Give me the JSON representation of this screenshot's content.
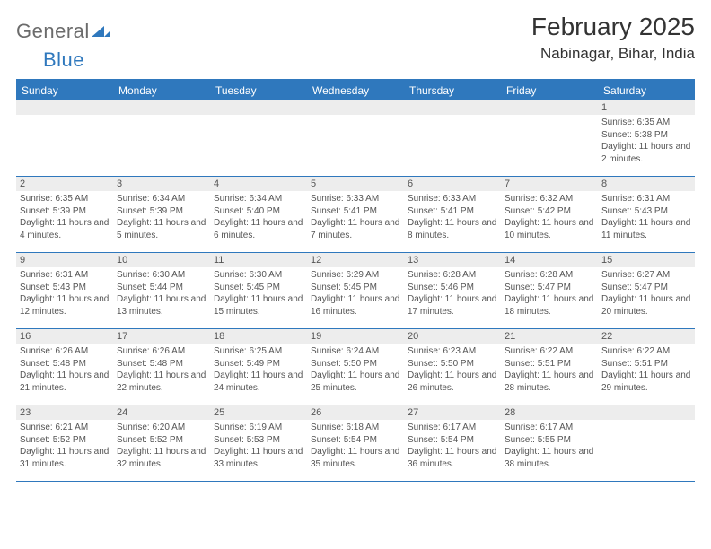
{
  "logo": {
    "part1": "General",
    "part2": "Blue"
  },
  "title": "February 2025",
  "location": "Nabinagar, Bihar, India",
  "colors": {
    "accent": "#2f78bd",
    "header_text": "#ffffff",
    "daynum_bg": "#ededed",
    "text": "#555555",
    "title_text": "#333333",
    "logo_gray": "#6b6b6b"
  },
  "dayNames": [
    "Sunday",
    "Monday",
    "Tuesday",
    "Wednesday",
    "Thursday",
    "Friday",
    "Saturday"
  ],
  "weeks": [
    [
      null,
      null,
      null,
      null,
      null,
      null,
      {
        "n": "1",
        "sunrise": "6:35 AM",
        "sunset": "5:38 PM",
        "daylight": "11 hours and 2 minutes."
      }
    ],
    [
      {
        "n": "2",
        "sunrise": "6:35 AM",
        "sunset": "5:39 PM",
        "daylight": "11 hours and 4 minutes."
      },
      {
        "n": "3",
        "sunrise": "6:34 AM",
        "sunset": "5:39 PM",
        "daylight": "11 hours and 5 minutes."
      },
      {
        "n": "4",
        "sunrise": "6:34 AM",
        "sunset": "5:40 PM",
        "daylight": "11 hours and 6 minutes."
      },
      {
        "n": "5",
        "sunrise": "6:33 AM",
        "sunset": "5:41 PM",
        "daylight": "11 hours and 7 minutes."
      },
      {
        "n": "6",
        "sunrise": "6:33 AM",
        "sunset": "5:41 PM",
        "daylight": "11 hours and 8 minutes."
      },
      {
        "n": "7",
        "sunrise": "6:32 AM",
        "sunset": "5:42 PM",
        "daylight": "11 hours and 10 minutes."
      },
      {
        "n": "8",
        "sunrise": "6:31 AM",
        "sunset": "5:43 PM",
        "daylight": "11 hours and 11 minutes."
      }
    ],
    [
      {
        "n": "9",
        "sunrise": "6:31 AM",
        "sunset": "5:43 PM",
        "daylight": "11 hours and 12 minutes."
      },
      {
        "n": "10",
        "sunrise": "6:30 AM",
        "sunset": "5:44 PM",
        "daylight": "11 hours and 13 minutes."
      },
      {
        "n": "11",
        "sunrise": "6:30 AM",
        "sunset": "5:45 PM",
        "daylight": "11 hours and 15 minutes."
      },
      {
        "n": "12",
        "sunrise": "6:29 AM",
        "sunset": "5:45 PM",
        "daylight": "11 hours and 16 minutes."
      },
      {
        "n": "13",
        "sunrise": "6:28 AM",
        "sunset": "5:46 PM",
        "daylight": "11 hours and 17 minutes."
      },
      {
        "n": "14",
        "sunrise": "6:28 AM",
        "sunset": "5:47 PM",
        "daylight": "11 hours and 18 minutes."
      },
      {
        "n": "15",
        "sunrise": "6:27 AM",
        "sunset": "5:47 PM",
        "daylight": "11 hours and 20 minutes."
      }
    ],
    [
      {
        "n": "16",
        "sunrise": "6:26 AM",
        "sunset": "5:48 PM",
        "daylight": "11 hours and 21 minutes."
      },
      {
        "n": "17",
        "sunrise": "6:26 AM",
        "sunset": "5:48 PM",
        "daylight": "11 hours and 22 minutes."
      },
      {
        "n": "18",
        "sunrise": "6:25 AM",
        "sunset": "5:49 PM",
        "daylight": "11 hours and 24 minutes."
      },
      {
        "n": "19",
        "sunrise": "6:24 AM",
        "sunset": "5:50 PM",
        "daylight": "11 hours and 25 minutes."
      },
      {
        "n": "20",
        "sunrise": "6:23 AM",
        "sunset": "5:50 PM",
        "daylight": "11 hours and 26 minutes."
      },
      {
        "n": "21",
        "sunrise": "6:22 AM",
        "sunset": "5:51 PM",
        "daylight": "11 hours and 28 minutes."
      },
      {
        "n": "22",
        "sunrise": "6:22 AM",
        "sunset": "5:51 PM",
        "daylight": "11 hours and 29 minutes."
      }
    ],
    [
      {
        "n": "23",
        "sunrise": "6:21 AM",
        "sunset": "5:52 PM",
        "daylight": "11 hours and 31 minutes."
      },
      {
        "n": "24",
        "sunrise": "6:20 AM",
        "sunset": "5:52 PM",
        "daylight": "11 hours and 32 minutes."
      },
      {
        "n": "25",
        "sunrise": "6:19 AM",
        "sunset": "5:53 PM",
        "daylight": "11 hours and 33 minutes."
      },
      {
        "n": "26",
        "sunrise": "6:18 AM",
        "sunset": "5:54 PM",
        "daylight": "11 hours and 35 minutes."
      },
      {
        "n": "27",
        "sunrise": "6:17 AM",
        "sunset": "5:54 PM",
        "daylight": "11 hours and 36 minutes."
      },
      {
        "n": "28",
        "sunrise": "6:17 AM",
        "sunset": "5:55 PM",
        "daylight": "11 hours and 38 minutes."
      },
      null
    ]
  ],
  "labels": {
    "sunrise": "Sunrise:",
    "sunset": "Sunset:",
    "daylight": "Daylight:"
  }
}
